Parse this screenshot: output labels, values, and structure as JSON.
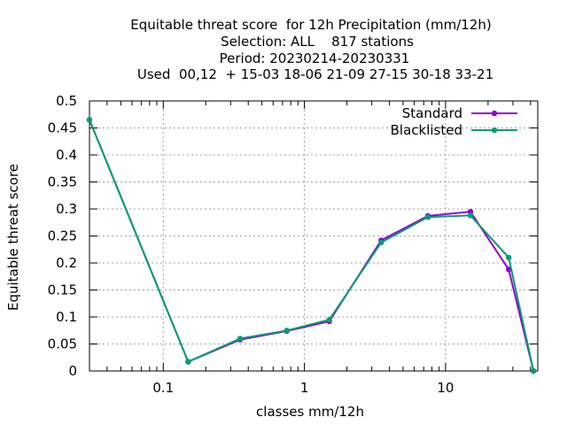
{
  "chart_data": {
    "type": "line",
    "title_lines": [
      "Equitable threat score  for 12h Precipitation (mm/12h)",
      "Selection: ALL    817 stations",
      "Period: 20230214-20230331",
      "Used  00,12  + 15-03 18-06 21-09 27-15 30-18 33-21"
    ],
    "xlabel": "classes mm/12h",
    "ylabel": "Equitable threat score",
    "x_scale": "log",
    "xlim": [
      0.03,
      45
    ],
    "ylim": [
      0,
      0.5
    ],
    "x_ticks": [
      0.1,
      1,
      10
    ],
    "x_tick_labels": [
      "0.1",
      "1",
      "10"
    ],
    "y_ticks": [
      0,
      0.05,
      0.1,
      0.15,
      0.2,
      0.25,
      0.3,
      0.35,
      0.4,
      0.45,
      0.5
    ],
    "y_tick_labels": [
      "0",
      "0.05",
      "0.1",
      "0.15",
      "0.2",
      "0.25",
      "0.3",
      "0.35",
      "0.4",
      "0.45",
      "0.5"
    ],
    "grid": true,
    "legend_position": "top-right",
    "series": [
      {
        "name": "Standard",
        "color": "#9400d3",
        "marker": "filled-circle",
        "x": [
          0.03,
          0.15,
          0.35,
          0.75,
          1.5,
          3.5,
          7.5,
          15,
          28,
          42
        ],
        "y": [
          0.465,
          0.017,
          0.058,
          0.074,
          0.092,
          0.242,
          0.287,
          0.295,
          0.188,
          0.0
        ]
      },
      {
        "name": "Blacklisted",
        "color": "#009e73",
        "marker": "filled-circle",
        "x": [
          0.03,
          0.15,
          0.35,
          0.75,
          1.5,
          3.5,
          7.5,
          15,
          28,
          42
        ],
        "y": [
          0.465,
          0.017,
          0.06,
          0.075,
          0.095,
          0.238,
          0.285,
          0.288,
          0.21,
          0.0
        ]
      }
    ]
  }
}
